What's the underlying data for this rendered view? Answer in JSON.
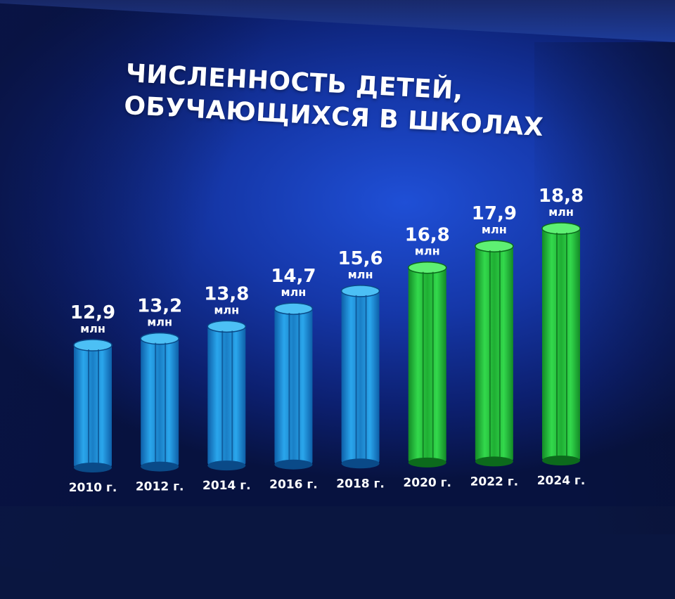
{
  "title_lines": [
    "ЧИСЛЕННОСТЬ ДЕТЕЙ,",
    "ОБУЧАЮЩИХСЯ В ШКОЛАХ"
  ],
  "unit": "млн",
  "colors": {
    "blue_bar": "#1e90d6",
    "green_bar": "#22c43a",
    "text": "#ffffff"
  },
  "chart_data": {
    "type": "bar",
    "categories": [
      "2010 г.",
      "2012 г.",
      "2014 г.",
      "2016 г.",
      "2018 г.",
      "2020 г.",
      "2022 г.",
      "2024 г."
    ],
    "values": [
      12.9,
      13.2,
      13.8,
      14.7,
      15.6,
      16.8,
      17.9,
      18.8
    ],
    "value_labels": [
      "12,9",
      "13,2",
      "13,8",
      "14,7",
      "15,6",
      "16,8",
      "17,9",
      "18,8"
    ],
    "bar_colors": [
      "blue",
      "blue",
      "blue",
      "blue",
      "blue",
      "green",
      "green",
      "green"
    ],
    "grid": false
  }
}
